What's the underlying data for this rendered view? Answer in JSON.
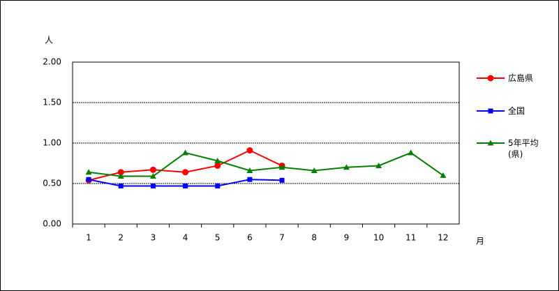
{
  "chart_data": {
    "type": "line",
    "y_label": "人",
    "x_label": "月",
    "categories": [
      "1",
      "2",
      "3",
      "4",
      "5",
      "6",
      "7",
      "8",
      "9",
      "10",
      "11",
      "12"
    ],
    "series": [
      {
        "name": "広島県",
        "color": "#ff0000",
        "marker": "circle",
        "values": [
          0.54,
          0.64,
          0.67,
          0.64,
          0.72,
          0.91,
          0.72,
          null,
          null,
          null,
          null,
          null
        ]
      },
      {
        "name": "全国",
        "color": "#0000ff",
        "marker": "square",
        "values": [
          0.55,
          0.47,
          0.47,
          0.47,
          0.47,
          0.55,
          0.54,
          null,
          null,
          null,
          null,
          null
        ]
      },
      {
        "name": "5年平均(県)",
        "color": "#008000",
        "marker": "triangle",
        "values": [
          0.64,
          0.59,
          0.59,
          0.88,
          0.78,
          0.66,
          0.7,
          0.66,
          0.7,
          0.72,
          0.88,
          0.6
        ]
      }
    ],
    "ylim": [
      0,
      2
    ],
    "yticks": [
      {
        "value": 0,
        "label": "0.00"
      },
      {
        "value": 0.5,
        "label": "0.50"
      },
      {
        "value": 1,
        "label": "1.00"
      },
      {
        "value": 1.5,
        "label": "1.50"
      },
      {
        "value": 2,
        "label": "2.00"
      }
    ],
    "grid": true
  }
}
